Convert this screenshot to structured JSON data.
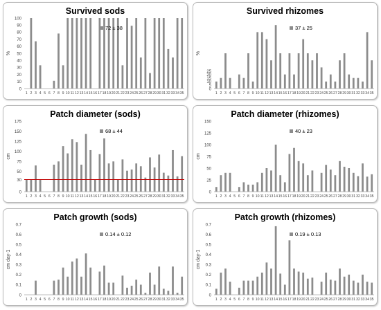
{
  "colors": {
    "bar": "#8c8c8c",
    "hline": "#c00000",
    "axis": "#a6a6a6",
    "text": "#404040"
  },
  "chart_data": [
    {
      "type": "bar",
      "title": "Survived sods",
      "ylabel": "%",
      "annotation": "72 ± 38",
      "categories": [
        "1",
        "2",
        "3",
        "4",
        "5",
        "6",
        "7",
        "8",
        "9",
        "10",
        "11",
        "12",
        "13",
        "14",
        "15",
        "16",
        "17",
        "18",
        "19",
        "20",
        "21",
        "22",
        "23",
        "24",
        "25",
        "26",
        "27",
        "28",
        "29",
        "30",
        "31",
        "32",
        "33",
        "34",
        "35"
      ],
      "values": [
        0,
        100,
        67,
        33,
        0,
        0,
        11,
        78,
        33,
        100,
        100,
        100,
        100,
        100,
        100,
        0,
        100,
        100,
        100,
        100,
        100,
        33,
        100,
        89,
        100,
        44,
        100,
        22,
        100,
        100,
        100,
        56,
        44,
        100,
        100
      ],
      "ylim": [
        0,
        100
      ],
      "yticks": [
        0,
        10,
        20,
        30,
        40,
        50,
        60,
        70,
        80,
        90,
        100
      ]
    },
    {
      "type": "bar",
      "title": "Survived rhizomes",
      "ylabel": "%",
      "annotation": "37 ± 25",
      "categories": [
        "1",
        "2",
        "3",
        "4",
        "5",
        "6",
        "7",
        "8",
        "9",
        "10",
        "11",
        "12",
        "13",
        "14",
        "15",
        "16",
        "17",
        "18",
        "19",
        "20",
        "21",
        "22",
        "23",
        "24",
        "25",
        "26",
        "27",
        "28",
        "29",
        "30",
        "31",
        "32",
        "33",
        "34",
        "35"
      ],
      "values": [
        10,
        15,
        50,
        15,
        0,
        20,
        15,
        50,
        10,
        80,
        80,
        70,
        40,
        90,
        50,
        20,
        50,
        20,
        50,
        70,
        50,
        40,
        50,
        30,
        10,
        20,
        10,
        40,
        50,
        20,
        15,
        15,
        10,
        80,
        40
      ],
      "ylim": [
        0,
        100
      ],
      "yticks": [
        0,
        5,
        10,
        15,
        20,
        25
      ]
    },
    {
      "type": "bar",
      "title": "Patch diameter (sods)",
      "ylabel": "cm",
      "annotation": "68 ± 44",
      "reference_line": 30,
      "categories": [
        "1",
        "2",
        "3",
        "4",
        "5",
        "6",
        "7",
        "8",
        "9",
        "10",
        "11",
        "12",
        "13",
        "14",
        "15",
        "16",
        "17",
        "18",
        "19",
        "20",
        "21",
        "22",
        "23",
        "24",
        "25",
        "26",
        "27",
        "28",
        "29",
        "30",
        "31",
        "32",
        "33",
        "34",
        "35"
      ],
      "values": [
        30,
        30,
        65,
        30,
        0,
        0,
        67,
        75,
        113,
        95,
        130,
        123,
        67,
        143,
        103,
        30,
        93,
        132,
        70,
        75,
        30,
        80,
        52,
        55,
        70,
        63,
        35,
        85,
        60,
        92,
        47,
        40,
        103,
        38,
        88
      ],
      "ylim": [
        0,
        175
      ],
      "yticks": [
        0,
        30,
        50,
        75,
        100,
        125,
        150,
        175
      ]
    },
    {
      "type": "bar",
      "title": "Patch diameter (rhizomes)",
      "ylabel": "cm",
      "annotation": "40 ± 23",
      "categories": [
        "1",
        "2",
        "3",
        "4",
        "5",
        "6",
        "7",
        "8",
        "9",
        "10",
        "11",
        "12",
        "13",
        "14",
        "15",
        "16",
        "17",
        "18",
        "19",
        "20",
        "21",
        "22",
        "23",
        "24",
        "25",
        "26",
        "27",
        "28",
        "29",
        "30",
        "31",
        "32",
        "33",
        "34",
        "35"
      ],
      "values": [
        10,
        35,
        40,
        40,
        0,
        10,
        20,
        15,
        15,
        20,
        40,
        50,
        45,
        100,
        35,
        20,
        80,
        93,
        65,
        60,
        35,
        45,
        0,
        40,
        57,
        47,
        35,
        65,
        53,
        50,
        40,
        33,
        60,
        32,
        37
      ],
      "ylim": [
        0,
        150
      ],
      "yticks": [
        0,
        25,
        50,
        75,
        100,
        125,
        150
      ]
    },
    {
      "type": "bar",
      "title": "Patch growth (sods)",
      "ylabel": "cm day-1",
      "annotation": "0.14 ± 0.12",
      "categories": [
        "1",
        "2",
        "3",
        "4",
        "5",
        "6",
        "7",
        "8",
        "9",
        "10",
        "11",
        "12",
        "13",
        "14",
        "15",
        "16",
        "17",
        "18",
        "19",
        "20",
        "21",
        "22",
        "23",
        "24",
        "25",
        "26",
        "27",
        "28",
        "29",
        "30",
        "31",
        "32",
        "33",
        "34",
        "35"
      ],
      "values": [
        0,
        0,
        0.14,
        0,
        0,
        0,
        0.14,
        0.15,
        0.27,
        0.18,
        0.33,
        0.36,
        0.18,
        0.41,
        0.27,
        0,
        0.23,
        0.29,
        0.12,
        0.12,
        0,
        0.19,
        0.07,
        0.09,
        0.15,
        0.1,
        0.02,
        0.22,
        0.1,
        0.28,
        0.06,
        0.04,
        0.28,
        0.02,
        0.18
      ],
      "ylim": [
        0,
        0.7
      ],
      "yticks": [
        0,
        0.1,
        0.2,
        0.3,
        0.4,
        0.5,
        0.6,
        0.7
      ]
    },
    {
      "type": "bar",
      "title": "Patch growth (rhizomes)",
      "ylabel": "cm day-1",
      "annotation": "0.19 ± 0.13",
      "categories": [
        "1",
        "2",
        "3",
        "4",
        "5",
        "6",
        "7",
        "8",
        "9",
        "10",
        "11",
        "12",
        "13",
        "14",
        "15",
        "16",
        "17",
        "18",
        "19",
        "20",
        "21",
        "22",
        "23",
        "24",
        "25",
        "26",
        "27",
        "28",
        "29",
        "30",
        "31",
        "32",
        "33",
        "34",
        "35"
      ],
      "values": [
        0.06,
        0.22,
        0.26,
        0.13,
        0,
        0.07,
        0.14,
        0.14,
        0.14,
        0.18,
        0.22,
        0.32,
        0.26,
        0.68,
        0.21,
        0.1,
        0.54,
        0.26,
        0.23,
        0.22,
        0.16,
        0.17,
        0,
        0.13,
        0.22,
        0.15,
        0.14,
        0.26,
        0.18,
        0.2,
        0.14,
        0.12,
        0.2,
        0.13,
        0.12
      ],
      "ylim": [
        0,
        0.7
      ],
      "yticks": [
        0,
        0.1,
        0.2,
        0.3,
        0.4,
        0.5,
        0.6,
        0.7
      ]
    }
  ]
}
